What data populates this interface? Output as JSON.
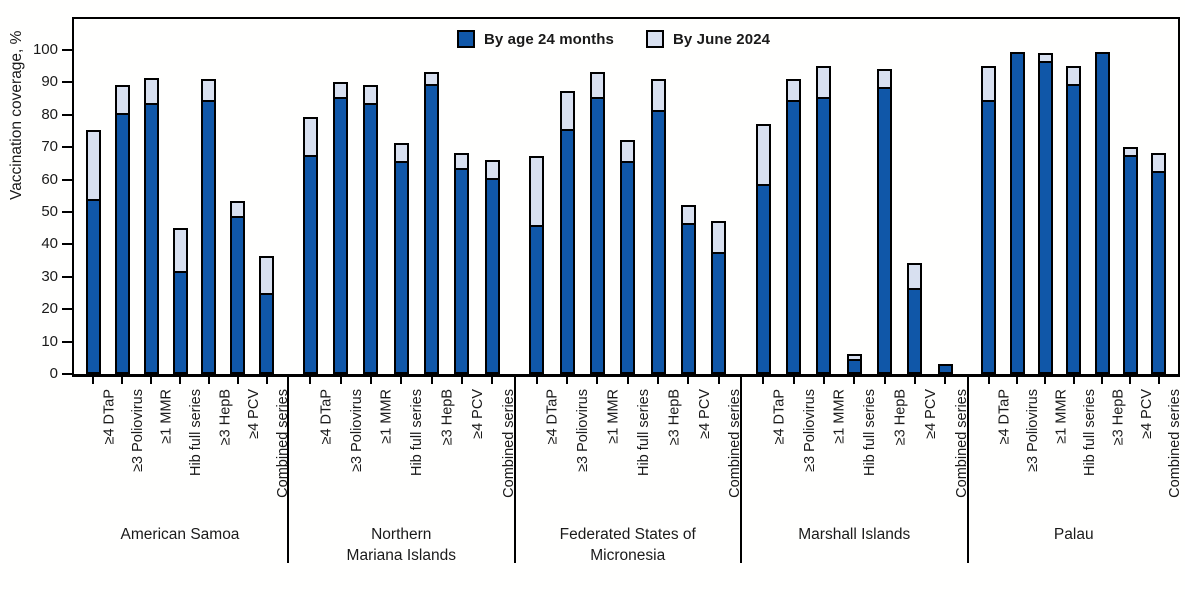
{
  "chart_data": {
    "type": "bar",
    "stacked": true,
    "title": "",
    "ylabel": "Vaccination coverage, %",
    "xlabel": "",
    "ylim": [
      0,
      100
    ],
    "yticks": [
      0,
      10,
      20,
      30,
      40,
      50,
      60,
      70,
      80,
      90,
      100
    ],
    "grid": false,
    "legend_position": "top-center",
    "legend": [
      {
        "name": "By age 24 months",
        "color": "#1057A8"
      },
      {
        "name": "By June 2024",
        "color": "#D8E0F0"
      }
    ],
    "categories": [
      "≥4 DTaP",
      "≥3 Poliovirus",
      "≥1 MMR",
      "Hib full series",
      "≥3 HepB",
      "≥4 PCV",
      "Combined series"
    ],
    "groups": [
      {
        "name": "American Samoa",
        "name_lines": [
          "American Samoa"
        ],
        "by_age_24_months": [
          53,
          80,
          83,
          31,
          84,
          48,
          24
        ],
        "by_june_2024": [
          74,
          88,
          90,
          44,
          90,
          52,
          35
        ]
      },
      {
        "name": "Northern Mariana Islands",
        "name_lines": [
          "Northern",
          "Mariana Islands"
        ],
        "by_age_24_months": [
          67,
          85,
          83,
          65,
          89,
          63,
          60
        ],
        "by_june_2024": [
          78,
          89,
          88,
          70,
          92,
          67,
          65
        ]
      },
      {
        "name": "Federated States of Micronesia",
        "name_lines": [
          "Federated States of",
          "Micronesia"
        ],
        "by_age_24_months": [
          45,
          75,
          85,
          65,
          81,
          46,
          37
        ],
        "by_june_2024": [
          66,
          86,
          92,
          71,
          90,
          51,
          46
        ]
      },
      {
        "name": "Marshall Islands",
        "name_lines": [
          "Marshall Islands"
        ],
        "by_age_24_months": [
          58,
          84,
          85,
          4,
          88,
          26,
          2
        ],
        "by_june_2024": [
          76,
          90,
          94,
          5,
          93,
          33,
          2
        ]
      },
      {
        "name": "Palau",
        "name_lines": [
          "Palau"
        ],
        "by_age_24_months": [
          84,
          98,
          96,
          89,
          98,
          67,
          62
        ],
        "by_june_2024": [
          94,
          98,
          98,
          94,
          98,
          69,
          67
        ]
      }
    ],
    "colors": {
      "bar_by_age_24_months": "#1057A8",
      "bar_by_june_2024": "#D8E0F0",
      "outline": "#000000",
      "text": "#1a1a1a",
      "background": "#fffffe"
    }
  }
}
